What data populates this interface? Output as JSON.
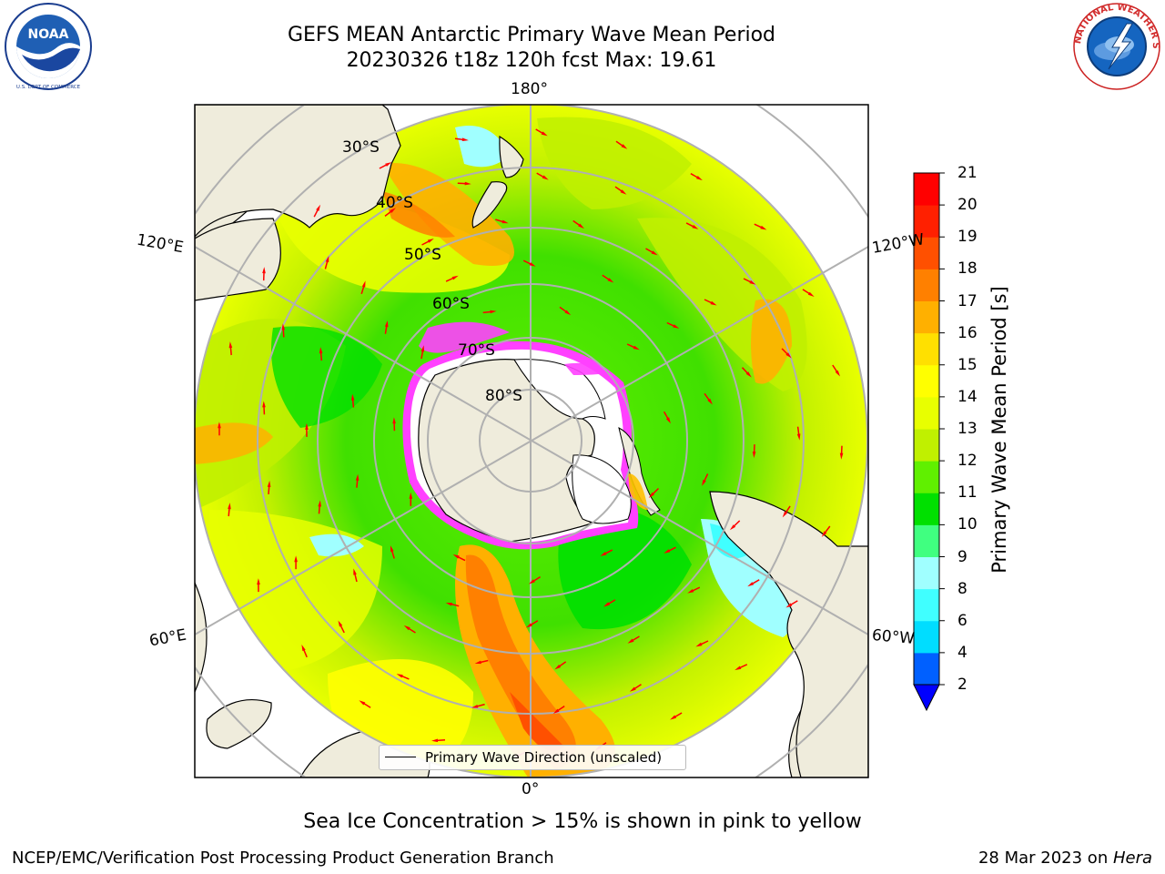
{
  "title": {
    "line1": "GEFS MEAN Antarctic Primary Wave Mean Period",
    "line2": "20230326 t18z 120h fcst   Max: 19.61"
  },
  "logos": {
    "left": {
      "name": "noaa-logo",
      "text": "NOAA",
      "ring_text": "NATIONAL OCEANIC AND ATMOSPHERIC ADMINISTRATION · U.S. DEPARTMENT OF COMMERCE"
    },
    "right": {
      "name": "nws-logo",
      "ring_text": "NATIONAL WEATHER SERVICE"
    }
  },
  "map": {
    "projection": "south-polar-stereographic",
    "longitude_labels": {
      "top": "180°",
      "bottom": "0°",
      "upper_left": "120°E",
      "upper_right": "120°W",
      "lower_left": "60°E",
      "lower_right": "60°W"
    },
    "latitude_labels": [
      "30°S",
      "40°S",
      "50°S",
      "60°S",
      "70°S",
      "80°S"
    ],
    "legend_entry": "Primary Wave Direction (unscaled)",
    "arrow_color": "#ff0000",
    "land_color": "#efecdc",
    "ice_colors": [
      "#ff40ff",
      "#ffffff",
      "#ffc000"
    ]
  },
  "colorbar": {
    "label": "Primary Wave Mean Period [s]",
    "ticks": [
      "2",
      "4",
      "6",
      "8",
      "9",
      "10",
      "11",
      "12",
      "13",
      "14",
      "15",
      "16",
      "17",
      "18",
      "19",
      "20",
      "21"
    ],
    "colors": [
      "#0060ff",
      "#00ddff",
      "#40ffff",
      "#a0ffff",
      "#40ff80",
      "#00e000",
      "#60f000",
      "#c0f000",
      "#e8ff00",
      "#ffff00",
      "#ffe000",
      "#ffb000",
      "#ff8000",
      "#ff5000",
      "#ff2000",
      "#ff0000"
    ],
    "under_color": "#0000ff",
    "extend": "min"
  },
  "footnote": "Sea Ice Concentration > 15% is shown in pink to yellow",
  "credit": {
    "left": "NCEP/EMC/Verification Post Processing Product Generation Branch",
    "right_prefix": "28 Mar 2023 on ",
    "right_host": "Hera"
  }
}
